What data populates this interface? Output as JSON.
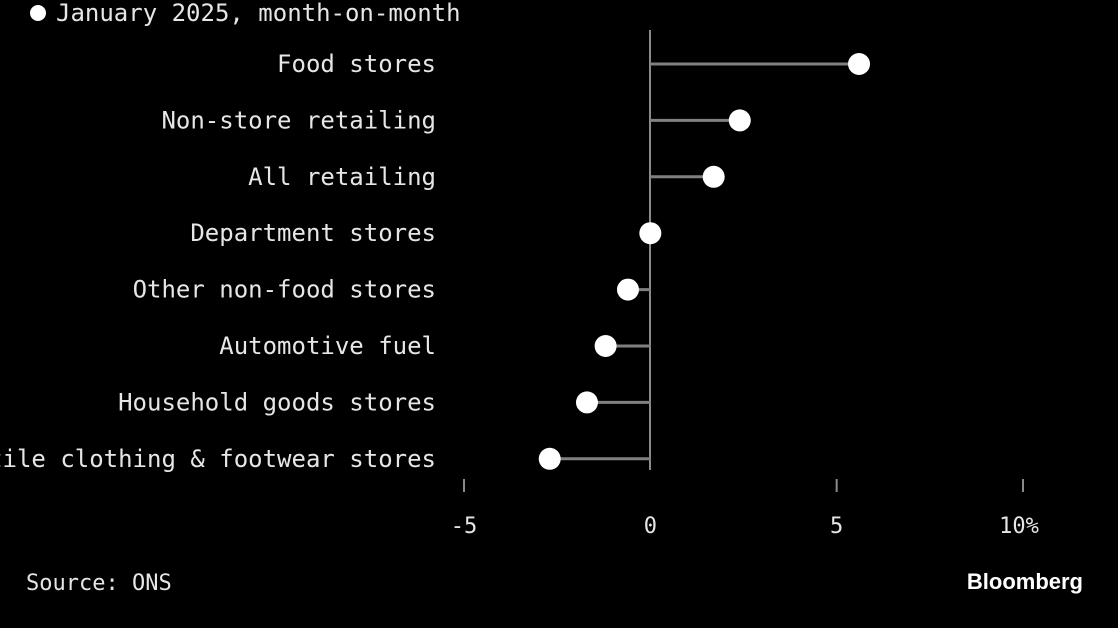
{
  "chart_data": {
    "type": "lollipop",
    "legend": {
      "label": "January 2025, month-on-month",
      "color": "#ffffff"
    },
    "categories": [
      "Food stores",
      "Non-store retailing",
      "All retailing",
      "Department stores",
      "Other non-food stores",
      "Automotive fuel",
      "Household goods stores",
      "Textile clothing & footwear stores"
    ],
    "values": [
      5.6,
      2.4,
      1.7,
      0.0,
      -0.6,
      -1.2,
      -1.7,
      -2.7
    ],
    "xlim": [
      -5,
      10
    ],
    "xticks": [
      -5,
      0,
      5,
      10
    ],
    "xtick_labels": [
      "-5",
      "0",
      "5",
      "10%"
    ],
    "colors": {
      "marker": "#ffffff",
      "stem": "#808080",
      "axis": "#8a8a8a",
      "text": "#e6e6e6"
    }
  },
  "footer": {
    "source": "Source: ONS",
    "brand": "Bloomberg"
  }
}
